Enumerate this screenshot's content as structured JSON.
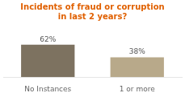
{
  "chart_data": {
    "type": "bar",
    "title": "Incidents of fraud or corruption\nin last 2 years?",
    "categories": [
      "No Instances",
      "1 or more"
    ],
    "values": [
      62,
      38
    ],
    "value_labels": [
      "62%",
      "38%"
    ],
    "data_labels": true,
    "colors": [
      "#7d7260",
      "#b8a98a"
    ],
    "ylim": [
      0,
      100
    ],
    "grid": false,
    "tick_labels": "x"
  }
}
